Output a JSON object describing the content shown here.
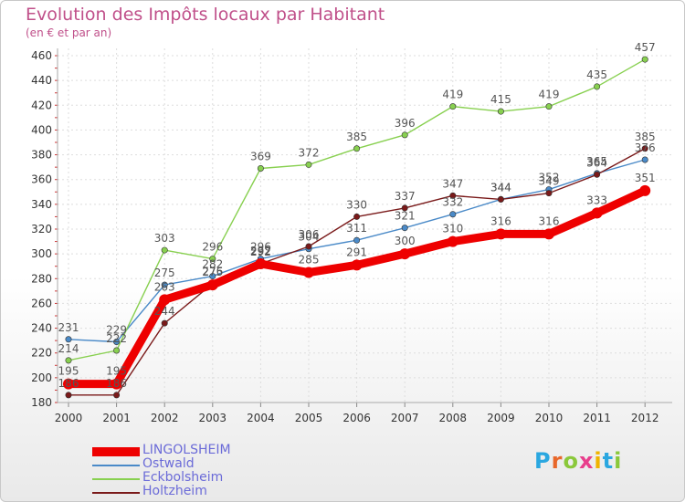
{
  "header": {
    "title": "Evolution des Impôts locaux par Habitant",
    "subtitle": "(en € et par an)"
  },
  "brand": {
    "letters": [
      "P",
      "r",
      "o",
      "x",
      "i",
      "t",
      "i"
    ],
    "colors": [
      "#2aa7e0",
      "#e8672a",
      "#8ac83a",
      "#e83e8c",
      "#f0b400",
      "#2aa7e0",
      "#8ac83a"
    ]
  },
  "chart_data": {
    "type": "line",
    "title": "Evolution des Impôts locaux par Habitant",
    "subtitle": "(en € et par an)",
    "xlabel": "",
    "ylabel": "",
    "categories": [
      "2000",
      "2001",
      "2002",
      "2003",
      "2004",
      "2005",
      "2006",
      "2007",
      "2008",
      "2009",
      "2010",
      "2011",
      "2012"
    ],
    "ylim": [
      180,
      460
    ],
    "yticks": [
      180,
      200,
      220,
      240,
      260,
      280,
      300,
      320,
      340,
      360,
      380,
      400,
      420,
      440,
      460
    ],
    "grid": true,
    "legend_position": "bottom-left",
    "series": [
      {
        "name": "LINGOLSHEIM",
        "color": "#ee0000",
        "emphasis": true,
        "values": [
          195,
          195,
          263,
          275,
          292,
          285,
          291,
          300,
          310,
          316,
          316,
          333,
          351
        ],
        "labels": [
          "195",
          "195",
          "263",
          "275",
          "292",
          "285",
          "291",
          "300",
          "310",
          "316",
          "316",
          "333",
          "351"
        ]
      },
      {
        "name": "Ostwald",
        "color": "#4a8ac8",
        "emphasis": false,
        "values": [
          231,
          229,
          275,
          282,
          296,
          304,
          311,
          321,
          332,
          344,
          352,
          365,
          376
        ],
        "labels": [
          "231",
          "229",
          "275",
          "282",
          "296",
          "304",
          "311",
          "321",
          "332",
          "344",
          "352",
          "365",
          "376"
        ]
      },
      {
        "name": "Eckbolsheim",
        "color": "#88d050",
        "emphasis": false,
        "values": [
          214,
          222,
          303,
          296,
          369,
          372,
          385,
          396,
          419,
          415,
          419,
          435,
          457
        ],
        "labels": [
          "214",
          "222",
          "303",
          "296",
          "369",
          "372",
          "385",
          "396",
          "419",
          "415",
          "419",
          "435",
          "457"
        ]
      },
      {
        "name": "Holtzheim",
        "color": "#7a1a1a",
        "emphasis": false,
        "values": [
          186,
          186,
          244,
          276,
          292,
          306,
          330,
          337,
          347,
          344,
          349,
          364,
          385
        ],
        "labels": [
          "186",
          "186",
          "244",
          "276",
          "292",
          "306",
          "330",
          "337",
          "347",
          "344",
          "349",
          "364",
          "385"
        ]
      }
    ]
  }
}
